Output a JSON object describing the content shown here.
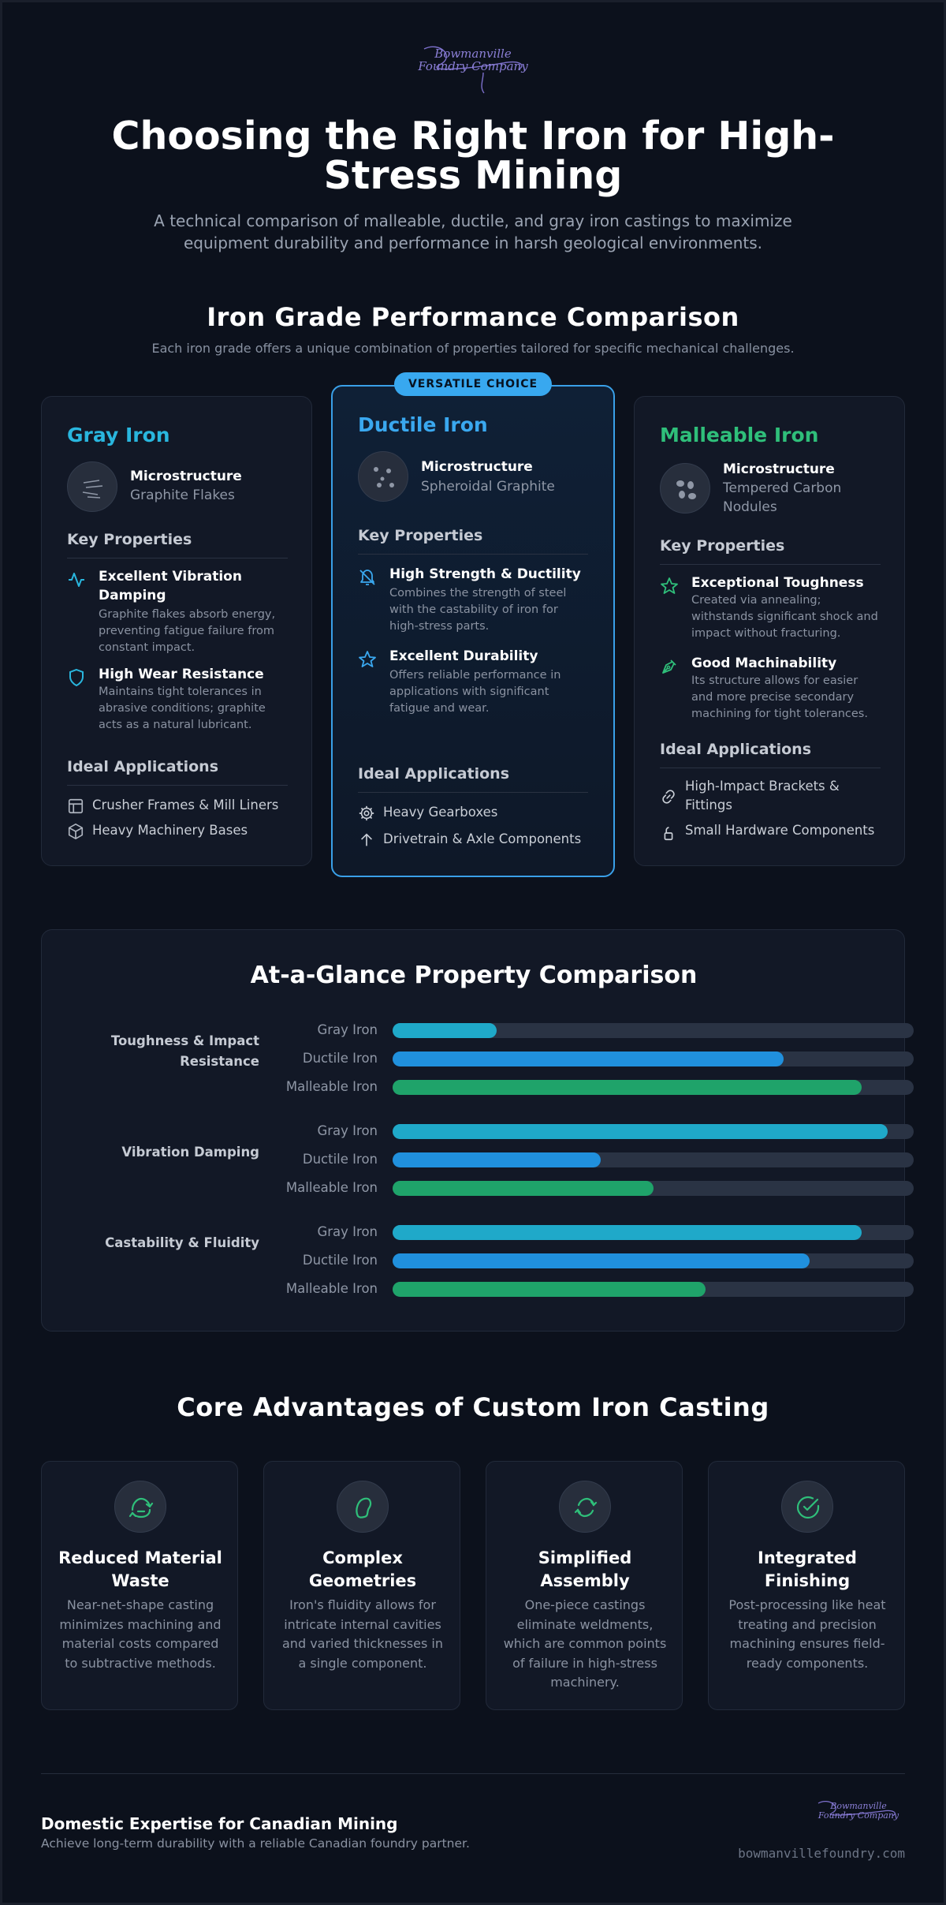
{
  "header": {
    "logo_text": "Bowmanville Foundry Company",
    "title": "Choosing the Right Iron for High-Stress Mining",
    "subtitle": "A technical comparison of malleable, ductile, and gray iron castings to maximize equipment durability and performance in harsh geological environments."
  },
  "comparison": {
    "title": "Iron Grade Performance Comparison",
    "subtitle": "Each iron grade offers a unique combination of properties tailored for specific mechanical challenges.",
    "microstructure_label": "Microstructure",
    "key_properties_label": "Key Properties",
    "applications_label": "Ideal Applications",
    "cards": [
      {
        "name": "Gray Iron",
        "color": "#29b6de",
        "microstructure": "Graphite Flakes",
        "properties": [
          {
            "icon": "activity-icon",
            "title": "Excellent Vibration Damping",
            "desc": "Graphite flakes absorb energy, preventing fatigue failure from constant impact."
          },
          {
            "icon": "shield-icon",
            "title": "High Wear Resistance",
            "desc": "Maintains tight tolerances in abrasive conditions; graphite acts as a natural lubricant."
          }
        ],
        "applications": [
          {
            "icon": "layout-icon",
            "label": "Crusher Frames & Mill Liners"
          },
          {
            "icon": "box-icon",
            "label": "Heavy Machinery Bases"
          }
        ]
      },
      {
        "name": "Ductile Iron",
        "color": "#3aa8ef",
        "badge": "VERSATILE CHOICE",
        "microstructure": "Spheroidal Graphite",
        "properties": [
          {
            "icon": "bell-off-icon",
            "title": "High Strength & Ductility",
            "desc": "Combines the strength of steel with the castability of iron for high-stress parts."
          },
          {
            "icon": "star-icon",
            "title": "Excellent Durability",
            "desc": "Offers reliable performance in applications with significant fatigue and wear."
          }
        ],
        "applications": [
          {
            "icon": "gear-icon",
            "label": "Heavy Gearboxes"
          },
          {
            "icon": "arrow-up-icon",
            "label": "Drivetrain & Axle Components"
          }
        ]
      },
      {
        "name": "Malleable Iron",
        "color": "#2fbf7a",
        "microstructure": "Tempered Carbon Nodules",
        "properties": [
          {
            "icon": "star-icon",
            "title": "Exceptional Toughness",
            "desc": "Created via annealing; withstands significant shock and impact without fracturing."
          },
          {
            "icon": "pen-tool-icon",
            "title": "Good Machinability",
            "desc": "Its structure allows for easier and more precise secondary machining for tight tolerances."
          }
        ],
        "applications": [
          {
            "icon": "link-icon",
            "label": "High-Impact Brackets & Fittings"
          },
          {
            "icon": "lock-icon",
            "label": "Small Hardware Components"
          }
        ]
      }
    ]
  },
  "glance": {
    "title": "At-a-Glance Property Comparison",
    "series_colors": [
      "#1fa9c9",
      "#2090dd",
      "#1fa36a"
    ],
    "groups": [
      {
        "label": "Toughness & Impact Resistance",
        "bars": [
          {
            "name": "Gray Iron",
            "value": 20
          },
          {
            "name": "Ductile Iron",
            "value": 75
          },
          {
            "name": "Malleable Iron",
            "value": 90
          }
        ]
      },
      {
        "label": "Vibration Damping",
        "bars": [
          {
            "name": "Gray Iron",
            "value": 95
          },
          {
            "name": "Ductile Iron",
            "value": 40
          },
          {
            "name": "Malleable Iron",
            "value": 50
          }
        ]
      },
      {
        "label": "Castability & Fluidity",
        "bars": [
          {
            "name": "Gray Iron",
            "value": 90
          },
          {
            "name": "Ductile Iron",
            "value": 80
          },
          {
            "name": "Malleable Iron",
            "value": 60
          }
        ]
      }
    ]
  },
  "advantages": {
    "title": "Core Advantages of Custom Iron Casting",
    "icon_color": "#2fbf7a",
    "items": [
      {
        "icon": "recycle-icon",
        "title": "Reduced Material Waste",
        "desc": "Near-net-shape casting minimizes machining and material costs compared to subtractive methods."
      },
      {
        "icon": "shape-icon",
        "title": "Complex Geometries",
        "desc": "Iron's fluidity allows for intricate internal cavities and varied thicknesses in a single component."
      },
      {
        "icon": "cycle-icon",
        "title": "Simplified Assembly",
        "desc": "One-piece castings eliminate weldments, which are common points of failure in high-stress machinery."
      },
      {
        "icon": "check-circle-icon",
        "title": "Integrated Finishing",
        "desc": "Post-processing like heat treating and precision machining ensures field-ready components."
      }
    ]
  },
  "footer": {
    "title": "Domestic Expertise for Canadian Mining",
    "subtitle": "Achieve long-term durability with a reliable Canadian foundry partner.",
    "url": "bowmanvillefoundry.com",
    "logo_text": "Bowmanville Foundry Company"
  }
}
